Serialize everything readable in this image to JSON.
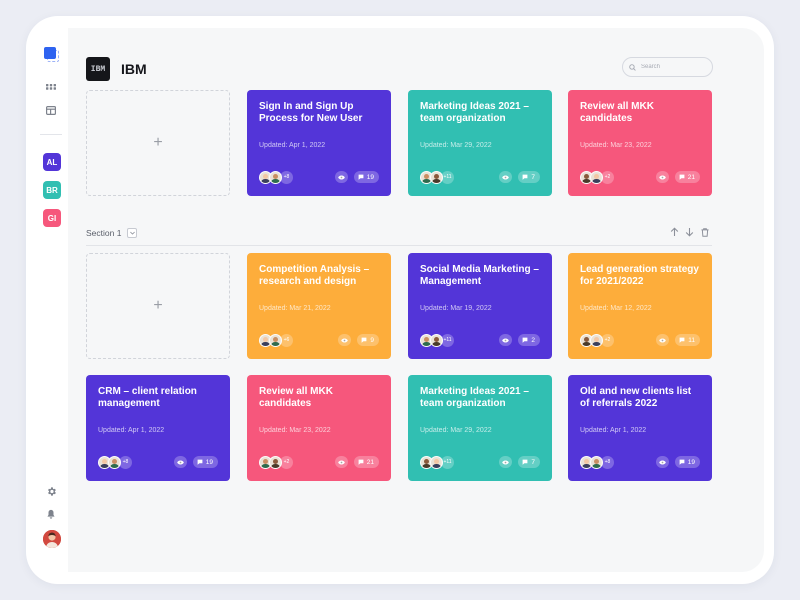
{
  "company": {
    "logo_text": "IBM",
    "name": "IBM"
  },
  "search": {
    "placeholder": "Search",
    "value": ""
  },
  "sidebar": {
    "workspaces": [
      {
        "label": "AL",
        "color": "#5335d8"
      },
      {
        "label": "BR",
        "color": "#31bfb2"
      },
      {
        "label": "GI",
        "color": "#f6577c"
      }
    ]
  },
  "add_label": "+",
  "pinned_cards": [
    {
      "title": "Sign In and Sign Up Process for New User",
      "updated": "Updated: Apr 1, 2022",
      "more": "+8",
      "comments": "19",
      "color": "#5335d8"
    },
    {
      "title": "Marketing Ideas 2021 – team organization",
      "updated": "Updated: Mar 29, 2022",
      "more": "+11",
      "comments": "7",
      "color": "#31bfb2"
    },
    {
      "title": "Review all MKK candidates",
      "updated": "Updated: Mar 23, 2022",
      "more": "+2",
      "comments": "21",
      "color": "#f6577c"
    }
  ],
  "section": {
    "label": "Section 1"
  },
  "section_cards": [
    {
      "title": "Competition Analysis – research and design",
      "updated": "Updated: Mar 21, 2022",
      "more": "+6",
      "comments": "9",
      "color": "#fdad3b"
    },
    {
      "title": "Social Media Marketing – Management",
      "updated": "Updated: Mar 19, 2022",
      "more": "+11",
      "comments": "2",
      "color": "#5335d8"
    },
    {
      "title": "Lead generation strategy for 2021/2022",
      "updated": "Updated: Mar 12, 2022",
      "more": "+2",
      "comments": "11",
      "color": "#fdad3b"
    },
    {
      "title": "CRM – client relation management",
      "updated": "Updated: Apr 1, 2022",
      "more": "+8",
      "comments": "19",
      "color": "#5335d8"
    },
    {
      "title": "Review all MKK candidates",
      "updated": "Updated: Mar 23, 2022",
      "more": "+2",
      "comments": "21",
      "color": "#f6577c"
    },
    {
      "title": "Marketing Ideas 2021 – team organization",
      "updated": "Updated: Mar 29, 2022",
      "more": "+11",
      "comments": "7",
      "color": "#31bfb2"
    },
    {
      "title": "Old and new clients list of referrals 2022",
      "updated": "Updated: Apr 1, 2022",
      "more": "+8",
      "comments": "19",
      "color": "#5335d8"
    }
  ]
}
